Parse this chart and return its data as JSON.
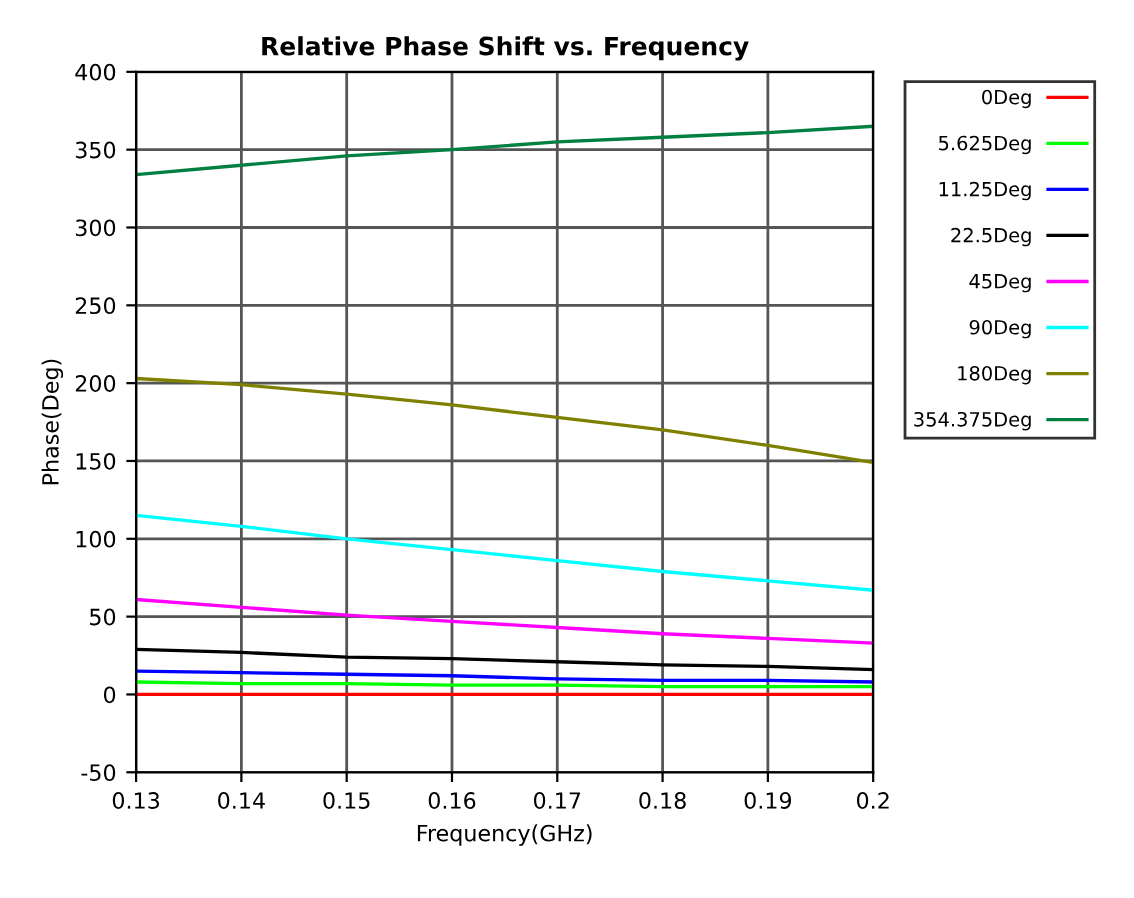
{
  "chart_data": {
    "type": "line",
    "title": "Relative Phase Shift vs. Frequency",
    "xlabel": "Frequency(GHz)",
    "ylabel": "Phase(Deg)",
    "xlim": [
      0.13,
      0.2
    ],
    "xticks": [
      0.13,
      0.14,
      0.15,
      0.16,
      0.17,
      0.18,
      0.19,
      0.2
    ],
    "ylim": [
      -50,
      400
    ],
    "yticks": [
      -50,
      0,
      50,
      100,
      150,
      200,
      250,
      300,
      350,
      400
    ],
    "x": [
      0.13,
      0.14,
      0.15,
      0.16,
      0.17,
      0.18,
      0.19,
      0.2
    ],
    "grid": true,
    "legend": "right",
    "line_style": "solid",
    "marker": "none",
    "series": [
      {
        "name": "0Deg",
        "color": "#ff0000",
        "values": [
          0,
          0,
          0,
          0,
          0,
          0,
          0,
          0
        ]
      },
      {
        "name": "5.625Deg",
        "color": "#00ff00",
        "values": [
          8,
          7,
          7,
          6,
          6,
          5,
          5,
          5
        ]
      },
      {
        "name": "11.25Deg",
        "color": "#0000ff",
        "values": [
          15,
          14,
          13,
          12,
          10,
          9,
          9,
          8
        ]
      },
      {
        "name": "22.5Deg",
        "color": "#000000",
        "values": [
          29,
          27,
          24,
          23,
          21,
          19,
          18,
          16
        ]
      },
      {
        "name": "45Deg",
        "color": "#ff00ff",
        "values": [
          61,
          56,
          51,
          47,
          43,
          39,
          36,
          33
        ]
      },
      {
        "name": "90Deg",
        "color": "#00ffff",
        "values": [
          115,
          108,
          100,
          93,
          86,
          79,
          73,
          67
        ]
      },
      {
        "name": "180Deg",
        "color": "#808000",
        "values": [
          203,
          199,
          193,
          186,
          178,
          170,
          160,
          149
        ]
      },
      {
        "name": "354.375Deg",
        "color": "#008040",
        "values": [
          334,
          340,
          346,
          350,
          355,
          358,
          361,
          365
        ]
      }
    ]
  }
}
